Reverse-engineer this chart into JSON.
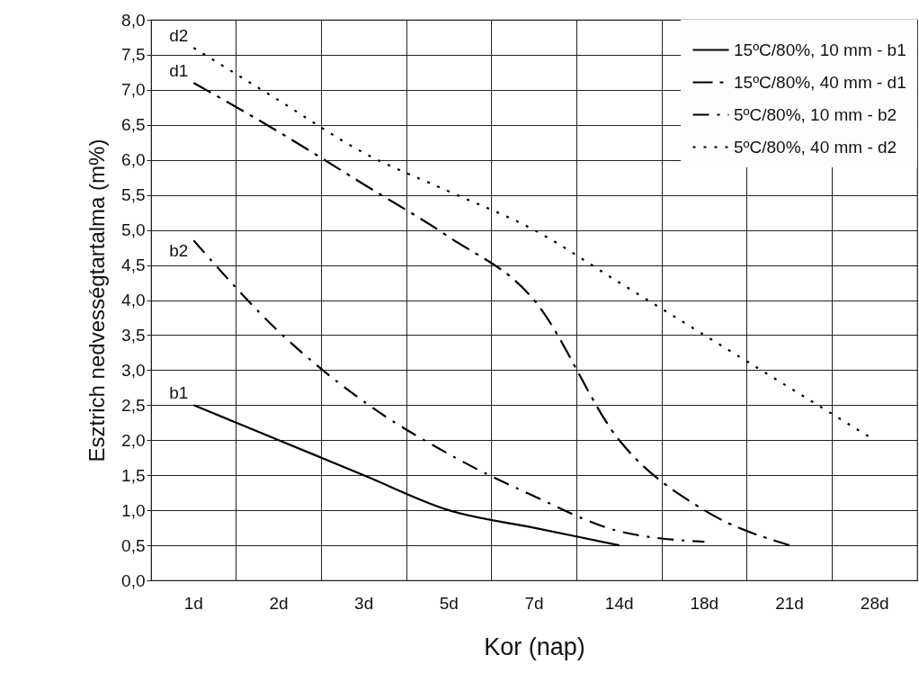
{
  "chart_data": {
    "type": "line",
    "xlabel": "Kor (nap)",
    "ylabel": "Esztrich nedvességtartalma (m%)",
    "categories": [
      "1d",
      "2d",
      "3d",
      "5d",
      "7d",
      "14d",
      "18d",
      "21d",
      "28d"
    ],
    "series": [
      {
        "name": "15ºC/80%, 10 mm - b1",
        "color": "#000000",
        "line_style": "solid",
        "values": [
          2.5,
          2.0,
          1.5,
          1.0,
          0.75,
          0.5,
          null,
          null,
          null
        ]
      },
      {
        "name": "15ºC/80%, 40 mm - d1",
        "color": "#000000",
        "line_style": "dashed",
        "values": [
          7.1,
          6.4,
          5.65,
          4.9,
          4.0,
          2.0,
          1.0,
          0.5,
          null
        ]
      },
      {
        "name": "5ºC/80%, 10 mm - b2",
        "color": "#000000",
        "line_style": "dashdot",
        "values": [
          4.85,
          3.55,
          2.55,
          1.8,
          1.2,
          0.7,
          0.55,
          null,
          null
        ]
      },
      {
        "name": "5ºC/80%, 40 mm - d2",
        "color": "#000000",
        "line_style": "dotted",
        "values": [
          7.6,
          6.85,
          6.1,
          5.55,
          5.0,
          4.25,
          3.5,
          2.75,
          2.0
        ]
      }
    ],
    "annotations": [
      {
        "text": "d2",
        "x": "1d",
        "y": 7.6
      },
      {
        "text": "d1",
        "x": "1d",
        "y": 7.1
      },
      {
        "text": "b2",
        "x": "1d",
        "y": 4.85
      },
      {
        "text": "b1",
        "x": "1d",
        "y": 2.5
      }
    ],
    "ylim": [
      0,
      8
    ],
    "yticks": [
      {
        "value": 0,
        "label": "0,0"
      },
      {
        "value": 0.5,
        "label": "0,5"
      },
      {
        "value": 1,
        "label": "1,0"
      },
      {
        "value": 1.5,
        "label": "1,5"
      },
      {
        "value": 2,
        "label": "2,0"
      },
      {
        "value": 2.5,
        "label": "2,5"
      },
      {
        "value": 3,
        "label": "3,0"
      },
      {
        "value": 3.5,
        "label": "3,5"
      },
      {
        "value": 4,
        "label": "4,0"
      },
      {
        "value": 4.5,
        "label": "4,5"
      },
      {
        "value": 5,
        "label": "5,0"
      },
      {
        "value": 5.5,
        "label": "5,5"
      },
      {
        "value": 6,
        "label": "6,0"
      },
      {
        "value": 6.5,
        "label": "6,5"
      },
      {
        "value": 7,
        "label": "7,0"
      },
      {
        "value": 7.5,
        "label": "7,5"
      },
      {
        "value": 8,
        "label": "8,0"
      }
    ],
    "grid": true,
    "legend": "top right"
  }
}
